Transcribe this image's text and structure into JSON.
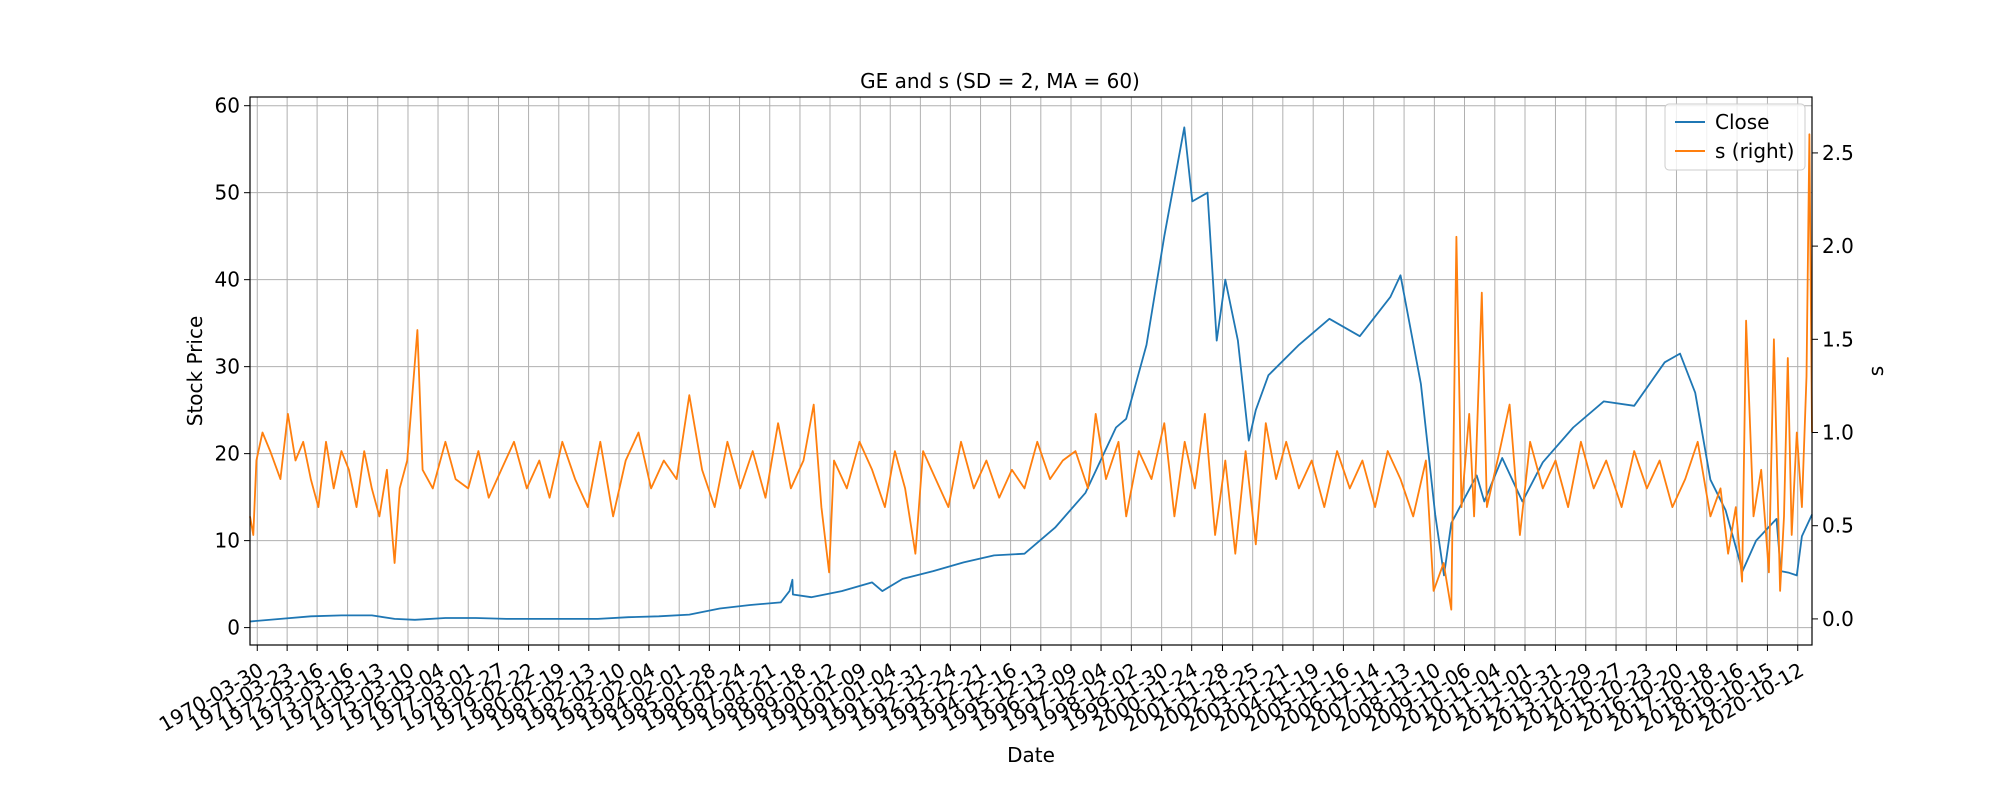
{
  "chart_data": {
    "type": "line",
    "title": "GE and s (SD = 2, MA = 60)",
    "xlabel": "Date",
    "ylabel": "Stock Price",
    "y2label": "s",
    "x_range": [
      "1970-01-02",
      "2021-04-01"
    ],
    "ylim": [
      -2,
      61
    ],
    "y2lim": [
      -0.14,
      2.8
    ],
    "yticks": [
      0,
      10,
      20,
      30,
      40,
      50,
      60
    ],
    "y2ticks": [
      "0.0",
      "0.5",
      "1.0",
      "1.5",
      "2.0",
      "2.5"
    ],
    "grid": true,
    "legend_position": "upper right",
    "x_tick_labels": [
      "1970-03-30",
      "1971-03-23",
      "1972-03-16",
      "1973-03-16",
      "1974-03-13",
      "1975-03-10",
      "1976-03-04",
      "1977-03-01",
      "1978-02-27",
      "1979-02-22",
      "1980-02-19",
      "1981-02-13",
      "1982-02-10",
      "1983-02-04",
      "1984-02-01",
      "1985-01-28",
      "1986-01-24",
      "1987-01-21",
      "1988-01-18",
      "1989-01-12",
      "1990-01-09",
      "1991-01-04",
      "1991-12-31",
      "1992-12-24",
      "1993-12-21",
      "1994-12-16",
      "1995-12-13",
      "1996-12-09",
      "1997-12-04",
      "1998-12-02",
      "1999-11-30",
      "2000-11-24",
      "2001-11-28",
      "2002-11-25",
      "2003-11-21",
      "2004-11-19",
      "2005-11-16",
      "2006-11-14",
      "2007-11-13",
      "2008-11-10",
      "2009-11-06",
      "2010-11-04",
      "2011-11-01",
      "2012-10-31",
      "2013-10-29",
      "2014-10-27",
      "2015-10-23",
      "2016-10-20",
      "2017-10-18",
      "2018-10-16",
      "2019-10-15",
      "2020-10-12"
    ],
    "series": [
      {
        "name": "Close",
        "axis": "left",
        "color": "#1f77b4",
        "points": [
          [
            "1970-01-02",
            0.7
          ],
          [
            "1971-01-02",
            1.0
          ],
          [
            "1972-01-02",
            1.3
          ],
          [
            "1973-01-02",
            1.4
          ],
          [
            "1974-01-02",
            1.4
          ],
          [
            "1974-10-01",
            1.0
          ],
          [
            "1975-06-01",
            0.9
          ],
          [
            "1976-06-01",
            1.1
          ],
          [
            "1977-06-01",
            1.1
          ],
          [
            "1978-06-01",
            1.0
          ],
          [
            "1979-06-01",
            1.0
          ],
          [
            "1980-06-01",
            1.0
          ],
          [
            "1981-06-01",
            1.0
          ],
          [
            "1982-06-01",
            1.2
          ],
          [
            "1983-06-01",
            1.3
          ],
          [
            "1984-06-01",
            1.5
          ],
          [
            "1985-06-01",
            2.2
          ],
          [
            "1986-06-01",
            2.6
          ],
          [
            "1987-06-01",
            2.9
          ],
          [
            "1987-09-15",
            4.2
          ],
          [
            "1987-10-19",
            5.5
          ],
          [
            "1987-10-26",
            3.8
          ],
          [
            "1988-06-01",
            3.5
          ],
          [
            "1989-06-01",
            4.2
          ],
          [
            "1990-06-01",
            5.2
          ],
          [
            "1990-10-01",
            4.2
          ],
          [
            "1991-06-01",
            5.6
          ],
          [
            "1992-06-01",
            6.5
          ],
          [
            "1993-06-01",
            7.5
          ],
          [
            "1994-06-01",
            8.3
          ],
          [
            "1995-06-01",
            8.5
          ],
          [
            "1996-06-01",
            11.5
          ],
          [
            "1997-06-01",
            15.5
          ],
          [
            "1998-06-01",
            23.0
          ],
          [
            "1998-10-01",
            24.0
          ],
          [
            "1999-06-01",
            32.5
          ],
          [
            "2000-01-01",
            45.0
          ],
          [
            "2000-08-28",
            57.5
          ],
          [
            "2000-12-01",
            49.0
          ],
          [
            "2001-06-01",
            50.0
          ],
          [
            "2001-09-20",
            33.0
          ],
          [
            "2002-01-01",
            40.0
          ],
          [
            "2002-06-01",
            33.0
          ],
          [
            "2002-10-09",
            21.5
          ],
          [
            "2003-01-01",
            25.0
          ],
          [
            "2003-06-01",
            29.0
          ],
          [
            "2004-06-01",
            32.5
          ],
          [
            "2005-06-01",
            35.5
          ],
          [
            "2006-06-01",
            33.5
          ],
          [
            "2007-06-01",
            38.0
          ],
          [
            "2007-10-01",
            40.5
          ],
          [
            "2008-06-01",
            28.0
          ],
          [
            "2008-11-20",
            13.0
          ],
          [
            "2009-03-05",
            6.0
          ],
          [
            "2009-06-01",
            12.0
          ],
          [
            "2010-04-01",
            17.5
          ],
          [
            "2010-07-01",
            14.5
          ],
          [
            "2011-02-01",
            19.5
          ],
          [
            "2011-10-01",
            14.5
          ],
          [
            "2012-06-01",
            19.0
          ],
          [
            "2013-06-01",
            23.0
          ],
          [
            "2014-06-01",
            26.0
          ],
          [
            "2015-06-01",
            25.5
          ],
          [
            "2016-06-01",
            30.5
          ],
          [
            "2016-12-01",
            31.5
          ],
          [
            "2017-06-01",
            27.0
          ],
          [
            "2017-12-01",
            17.0
          ],
          [
            "2018-06-01",
            13.5
          ],
          [
            "2018-12-20",
            6.5
          ],
          [
            "2019-06-01",
            10.0
          ],
          [
            "2020-02-01",
            12.5
          ],
          [
            "2020-03-23",
            6.5
          ],
          [
            "2020-07-01",
            6.3
          ],
          [
            "2020-10-01",
            6.0
          ],
          [
            "2020-12-01",
            10.5
          ],
          [
            "2021-04-01",
            13.0
          ]
        ]
      },
      {
        "name": "s (right)",
        "axis": "right",
        "color": "#ff7f0e",
        "points": [
          [
            "1970-01-02",
            0.55
          ],
          [
            "1970-02-10",
            0.45
          ],
          [
            "1970-03-20",
            0.85
          ],
          [
            "1970-06-01",
            1.0
          ],
          [
            "1970-09-01",
            0.9
          ],
          [
            "1971-01-01",
            0.75
          ],
          [
            "1971-04-01",
            1.1
          ],
          [
            "1971-07-01",
            0.85
          ],
          [
            "1971-10-01",
            0.95
          ],
          [
            "1972-01-01",
            0.75
          ],
          [
            "1972-04-01",
            0.6
          ],
          [
            "1972-07-01",
            0.95
          ],
          [
            "1972-10-01",
            0.7
          ],
          [
            "1973-01-01",
            0.9
          ],
          [
            "1973-04-01",
            0.8
          ],
          [
            "1973-07-01",
            0.6
          ],
          [
            "1973-10-01",
            0.9
          ],
          [
            "1974-01-01",
            0.7
          ],
          [
            "1974-04-01",
            0.55
          ],
          [
            "1974-07-01",
            0.8
          ],
          [
            "1974-10-01",
            0.3
          ],
          [
            "1974-12-01",
            0.7
          ],
          [
            "1975-03-01",
            0.85
          ],
          [
            "1975-07-01",
            1.55
          ],
          [
            "1975-09-01",
            0.8
          ],
          [
            "1976-01-01",
            0.7
          ],
          [
            "1976-06-01",
            0.95
          ],
          [
            "1976-10-01",
            0.75
          ],
          [
            "1977-03-01",
            0.7
          ],
          [
            "1977-07-01",
            0.9
          ],
          [
            "1977-11-01",
            0.65
          ],
          [
            "1978-04-01",
            0.8
          ],
          [
            "1978-09-01",
            0.95
          ],
          [
            "1979-02-01",
            0.7
          ],
          [
            "1979-07-01",
            0.85
          ],
          [
            "1979-11-01",
            0.65
          ],
          [
            "1980-04-01",
            0.95
          ],
          [
            "1980-09-01",
            0.75
          ],
          [
            "1981-02-01",
            0.6
          ],
          [
            "1981-07-01",
            0.95
          ],
          [
            "1981-12-01",
            0.55
          ],
          [
            "1982-05-01",
            0.85
          ],
          [
            "1982-10-01",
            1.0
          ],
          [
            "1983-03-01",
            0.7
          ],
          [
            "1983-08-01",
            0.85
          ],
          [
            "1984-01-01",
            0.75
          ],
          [
            "1984-06-01",
            1.2
          ],
          [
            "1984-11-01",
            0.8
          ],
          [
            "1985-04-01",
            0.6
          ],
          [
            "1985-09-01",
            0.95
          ],
          [
            "1986-02-01",
            0.7
          ],
          [
            "1986-07-01",
            0.9
          ],
          [
            "1986-12-01",
            0.65
          ],
          [
            "1987-05-01",
            1.05
          ],
          [
            "1987-10-01",
            0.7
          ],
          [
            "1988-03-01",
            0.85
          ],
          [
            "1988-07-01",
            1.15
          ],
          [
            "1988-10-01",
            0.6
          ],
          [
            "1989-01-01",
            0.25
          ],
          [
            "1989-03-01",
            0.85
          ],
          [
            "1989-08-01",
            0.7
          ],
          [
            "1990-01-01",
            0.95
          ],
          [
            "1990-06-01",
            0.8
          ],
          [
            "1990-11-01",
            0.6
          ],
          [
            "1991-03-01",
            0.9
          ],
          [
            "1991-07-01",
            0.7
          ],
          [
            "1991-11-01",
            0.35
          ],
          [
            "1992-02-01",
            0.9
          ],
          [
            "1992-07-01",
            0.75
          ],
          [
            "1992-12-01",
            0.6
          ],
          [
            "1993-05-01",
            0.95
          ],
          [
            "1993-10-01",
            0.7
          ],
          [
            "1994-03-01",
            0.85
          ],
          [
            "1994-08-01",
            0.65
          ],
          [
            "1995-01-01",
            0.8
          ],
          [
            "1995-06-01",
            0.7
          ],
          [
            "1995-11-01",
            0.95
          ],
          [
            "1996-04-01",
            0.75
          ],
          [
            "1996-09-01",
            0.85
          ],
          [
            "1997-02-01",
            0.9
          ],
          [
            "1997-07-01",
            0.7
          ],
          [
            "1997-10-01",
            1.1
          ],
          [
            "1998-02-01",
            0.75
          ],
          [
            "1998-07-01",
            0.95
          ],
          [
            "1998-10-01",
            0.55
          ],
          [
            "1999-03-01",
            0.9
          ],
          [
            "1999-08-01",
            0.75
          ],
          [
            "2000-01-01",
            1.05
          ],
          [
            "2000-05-01",
            0.55
          ],
          [
            "2000-09-01",
            0.95
          ],
          [
            "2001-01-01",
            0.7
          ],
          [
            "2001-05-01",
            1.1
          ],
          [
            "2001-09-01",
            0.45
          ],
          [
            "2002-01-01",
            0.85
          ],
          [
            "2002-05-01",
            0.35
          ],
          [
            "2002-09-01",
            0.9
          ],
          [
            "2003-01-01",
            0.4
          ],
          [
            "2003-05-01",
            1.05
          ],
          [
            "2003-09-01",
            0.75
          ],
          [
            "2004-01-01",
            0.95
          ],
          [
            "2004-06-01",
            0.7
          ],
          [
            "2004-11-01",
            0.85
          ],
          [
            "2005-04-01",
            0.6
          ],
          [
            "2005-09-01",
            0.9
          ],
          [
            "2006-02-01",
            0.7
          ],
          [
            "2006-07-01",
            0.85
          ],
          [
            "2006-12-01",
            0.6
          ],
          [
            "2007-05-01",
            0.9
          ],
          [
            "2007-10-01",
            0.75
          ],
          [
            "2008-03-01",
            0.55
          ],
          [
            "2008-08-01",
            0.85
          ],
          [
            "2008-11-01",
            0.15
          ],
          [
            "2009-03-01",
            0.3
          ],
          [
            "2009-06-01",
            0.05
          ],
          [
            "2009-08-01",
            2.05
          ],
          [
            "2009-10-01",
            0.6
          ],
          [
            "2010-01-01",
            1.1
          ],
          [
            "2010-03-01",
            0.55
          ],
          [
            "2010-06-01",
            1.75
          ],
          [
            "2010-08-01",
            0.6
          ],
          [
            "2011-01-01",
            0.9
          ],
          [
            "2011-05-01",
            1.15
          ],
          [
            "2011-09-01",
            0.45
          ],
          [
            "2012-01-01",
            0.95
          ],
          [
            "2012-06-01",
            0.7
          ],
          [
            "2012-11-01",
            0.85
          ],
          [
            "2013-04-01",
            0.6
          ],
          [
            "2013-09-01",
            0.95
          ],
          [
            "2014-02-01",
            0.7
          ],
          [
            "2014-07-01",
            0.85
          ],
          [
            "2015-01-01",
            0.6
          ],
          [
            "2015-06-01",
            0.9
          ],
          [
            "2015-11-01",
            0.7
          ],
          [
            "2016-04-01",
            0.85
          ],
          [
            "2016-09-01",
            0.6
          ],
          [
            "2017-02-01",
            0.75
          ],
          [
            "2017-07-01",
            0.95
          ],
          [
            "2017-12-01",
            0.55
          ],
          [
            "2018-04-01",
            0.7
          ],
          [
            "2018-07-01",
            0.35
          ],
          [
            "2018-10-01",
            0.6
          ],
          [
            "2018-12-15",
            0.2
          ],
          [
            "2019-02-01",
            1.6
          ],
          [
            "2019-05-01",
            0.55
          ],
          [
            "2019-08-01",
            0.8
          ],
          [
            "2019-11-01",
            0.25
          ],
          [
            "2020-01-01",
            1.5
          ],
          [
            "2020-03-15",
            0.15
          ],
          [
            "2020-05-01",
            0.55
          ],
          [
            "2020-06-15",
            1.4
          ],
          [
            "2020-08-01",
            0.45
          ],
          [
            "2020-10-01",
            1.0
          ],
          [
            "2020-12-01",
            0.6
          ],
          [
            "2021-01-25",
            1.3
          ],
          [
            "2021-03-01",
            2.6
          ],
          [
            "2021-04-01",
            1.0
          ]
        ]
      }
    ]
  }
}
